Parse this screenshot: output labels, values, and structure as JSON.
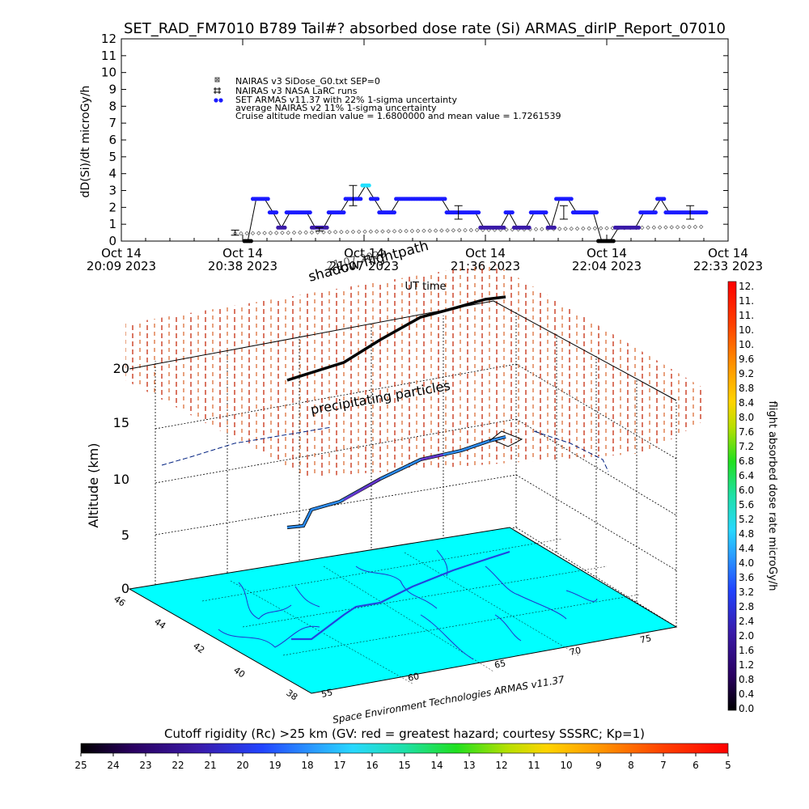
{
  "title": "SET_RAD_FM7010  B789 Tail#? absorbed dose rate (Si) ARMAS_dirIP_Report_07010",
  "chart_data": [
    {
      "type": "scatter",
      "ylabel": "dD(Si)/dt microGy/h",
      "xlabel": "UT time",
      "yticks": [
        "0",
        "1",
        "2",
        "3",
        "4",
        "5",
        "6",
        "7",
        "8",
        "9",
        "10",
        "11",
        "12"
      ],
      "ylim": [
        0,
        12
      ],
      "xticks": [
        {
          "line1": "Oct 14",
          "line2": "20:09 2023"
        },
        {
          "line1": "Oct 14",
          "line2": "20:38 2023"
        },
        {
          "line1": "Oct 14",
          "line2": "21:07 2023"
        },
        {
          "line1": "Oct 14",
          "line2": "21:36 2023"
        },
        {
          "line1": "Oct 14",
          "line2": "22:04 2023"
        },
        {
          "line1": "Oct 14",
          "line2": "22:33 2023"
        }
      ],
      "xlim_minutes": [
        0,
        144
      ],
      "legend": [
        "NAIRAS v3 SiDose_G0.txt SEP=0",
        "NAIRAS v3 NASA LaRC runs",
        "SET ARMAS v11.37 with 22% 1-sigma uncertainty",
        "average NAIRAS v2 11% 1-sigma uncertainty",
        "Cruise altitude median value = 1.6800000 and mean value = 1.7261539"
      ],
      "series": [
        {
          "name": "SET ARMAS v11.37",
          "color": "#1a1aff",
          "x": [
            30,
            32,
            34,
            36,
            38,
            40,
            42,
            44,
            46,
            48,
            50,
            52,
            54,
            56,
            58,
            60,
            62,
            64,
            66,
            68,
            70,
            72,
            74,
            76,
            78,
            80,
            82,
            84,
            86,
            88,
            90,
            92,
            94,
            96,
            98,
            100,
            102,
            104,
            106,
            108,
            110,
            112,
            114,
            116,
            118,
            120,
            122,
            124,
            126,
            128,
            130,
            132,
            134,
            136,
            138
          ],
          "values": [
            0,
            2.5,
            2.5,
            1.7,
            0.8,
            1.7,
            1.7,
            1.7,
            0.8,
            0.8,
            1.7,
            1.7,
            2.5,
            2.5,
            3.3,
            2.5,
            1.7,
            1.7,
            2.5,
            2.5,
            2.5,
            2.5,
            2.5,
            2.5,
            1.7,
            1.7,
            1.7,
            1.7,
            0.8,
            0.8,
            0.8,
            1.7,
            0.8,
            0.8,
            1.7,
            1.7,
            0.8,
            2.5,
            2.5,
            1.7,
            1.7,
            1.7,
            0,
            0,
            0.8,
            0.8,
            0.8,
            1.7,
            1.7,
            2.5,
            1.7,
            1.7,
            1.7,
            1.7,
            1.7
          ]
        },
        {
          "name": "NAIRAS v3 SiDose",
          "color": "#555555",
          "x_start": 27,
          "x_end": 139,
          "y_start": 0.45,
          "y_end": 0.85
        }
      ],
      "errorbars": [
        {
          "x": 27,
          "y": 0.5,
          "err": 0.15
        },
        {
          "x": 47,
          "y": 0.7,
          "err": 0.1
        },
        {
          "x": 55,
          "y": 2.7,
          "err": 0.6
        },
        {
          "x": 80,
          "y": 1.7,
          "err": 0.4
        },
        {
          "x": 105,
          "y": 1.7,
          "err": 0.4
        },
        {
          "x": 135,
          "y": 1.7,
          "err": 0.4
        }
      ]
    },
    {
      "type": "3d-trajectory",
      "zlabel": "Altitude (km)",
      "zticks": [
        "0",
        "5",
        "10",
        "15",
        "20"
      ],
      "lat_ticks": [
        "46",
        "44",
        "42",
        "40",
        "38"
      ],
      "lon_ticks": [
        "55",
        "60",
        "65",
        "70",
        "75"
      ],
      "labels": {
        "shadow": "shadow flightpath",
        "overlap": "21:07 2023",
        "ut_time": "UT time",
        "precip": "precipitating particles",
        "credit": "Space Environment Technologies ARMAS v11.37"
      }
    },
    {
      "type": "colorbar",
      "label": "flight absorbed dose rate microGy/h",
      "ticks": [
        "12.",
        "11.",
        "11.",
        "10.",
        "10.",
        "9.6",
        "9.2",
        "8.8",
        "8.4",
        "8.0",
        "7.6",
        "7.2",
        "6.8",
        "6.4",
        "6.0",
        "5.6",
        "5.2",
        "4.8",
        "4.4",
        "4.0",
        "3.6",
        "3.2",
        "2.8",
        "2.4",
        "2.0",
        "1.6",
        "1.2",
        "0.8",
        "0.4",
        "0.0"
      ]
    },
    {
      "type": "colorbar",
      "label": "Cutoff rigidity (Rc) >25 km (GV: red = greatest hazard; courtesy SSSRC; Kp=1)",
      "ticks": [
        "25",
        "24",
        "23",
        "22",
        "21",
        "20",
        "19",
        "18",
        "17",
        "16",
        "15",
        "14",
        "13",
        "12",
        "11",
        "10",
        "9",
        "8",
        "7",
        "6",
        "5"
      ]
    }
  ]
}
